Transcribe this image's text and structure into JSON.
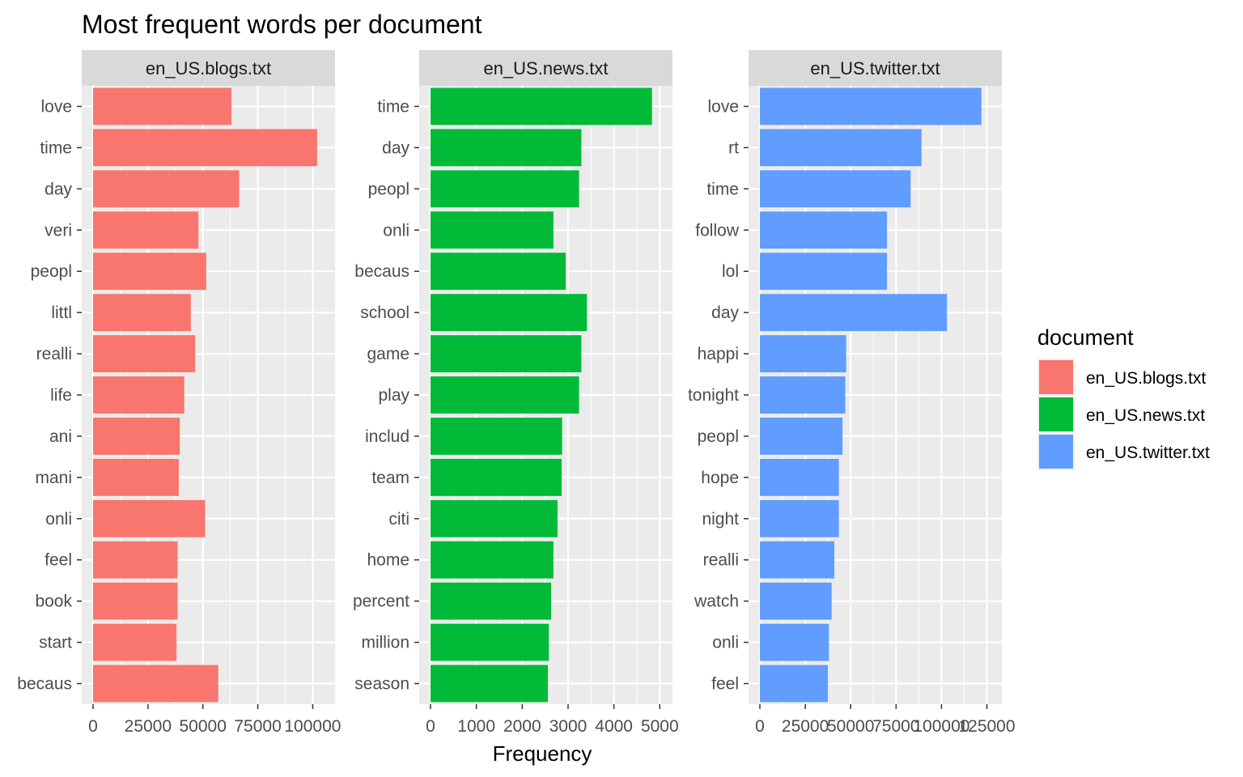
{
  "chart_data": {
    "type": "bar",
    "orientation": "horizontal",
    "title": "Most frequent words per document",
    "xlabel": "Frequency",
    "ylabel": "",
    "grid": true,
    "legend": {
      "title": "document",
      "position": "right",
      "entries": [
        {
          "label": "en_US.blogs.txt",
          "color": "#F8766D"
        },
        {
          "label": "en_US.news.txt",
          "color": "#00BA38"
        },
        {
          "label": "en_US.twitter.txt",
          "color": "#619CFF"
        }
      ]
    },
    "panels": [
      {
        "name": "en_US.blogs.txt",
        "color": "#F8766D",
        "xlim": [
          0,
          105000
        ],
        "xticks": [
          0,
          25000,
          50000,
          75000,
          100000
        ],
        "xtick_labels": [
          "0",
          "25000",
          "50000",
          "75000",
          "100000"
        ],
        "categories": [
          "love",
          "time",
          "day",
          "veri",
          "peopl",
          "littl",
          "realli",
          "life",
          "ani",
          "mani",
          "onli",
          "feel",
          "book",
          "start",
          "becaus"
        ],
        "values": [
          63000,
          102000,
          66500,
          48000,
          51500,
          44500,
          46500,
          41500,
          39500,
          39000,
          51000,
          38500,
          38500,
          38000,
          57000
        ]
      },
      {
        "name": "en_US.news.txt",
        "color": "#00BA38",
        "xlim": [
          0,
          5030
        ],
        "xticks": [
          0,
          1000,
          2000,
          3000,
          4000,
          5000
        ],
        "xtick_labels": [
          "0",
          "1000",
          "2000",
          "3000",
          "4000",
          "5000"
        ],
        "categories": [
          "time",
          "day",
          "peopl",
          "onli",
          "becaus",
          "school",
          "game",
          "play",
          "includ",
          "team",
          "citi",
          "home",
          "percent",
          "million",
          "season"
        ],
        "values": [
          4830,
          3290,
          3240,
          2680,
          2950,
          3410,
          3290,
          3240,
          2870,
          2860,
          2770,
          2680,
          2630,
          2580,
          2560
        ]
      },
      {
        "name": "en_US.twitter.txt",
        "color": "#619CFF",
        "xlim": [
          0,
          127000
        ],
        "xticks": [
          0,
          25000,
          50000,
          75000,
          100000,
          125000
        ],
        "xtick_labels": [
          "0",
          "25000",
          "50000",
          "75000",
          "100000",
          "125000"
        ],
        "categories": [
          "love",
          "rt",
          "time",
          "follow",
          "lol",
          "day",
          "happi",
          "tonight",
          "peopl",
          "hope",
          "night",
          "realli",
          "watch",
          "onli",
          "feel"
        ],
        "values": [
          122000,
          89000,
          83000,
          70000,
          70000,
          103000,
          47500,
          47000,
          45500,
          43500,
          43500,
          41000,
          39500,
          38000,
          37500
        ]
      }
    ]
  }
}
